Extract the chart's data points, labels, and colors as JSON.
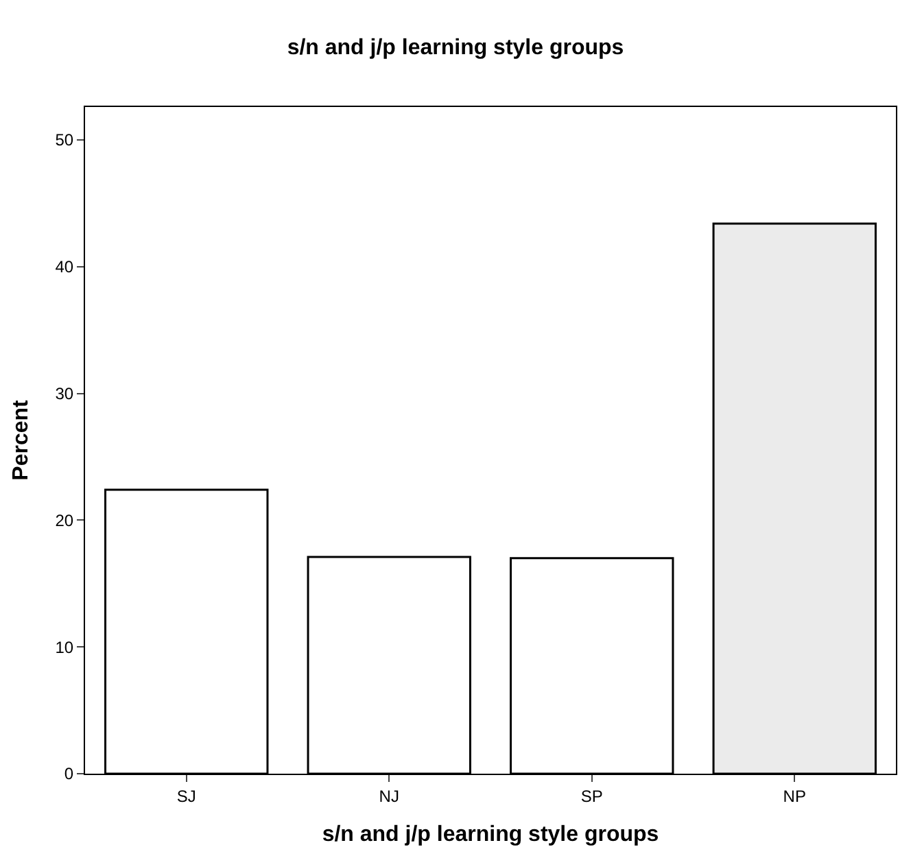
{
  "chart_data": {
    "type": "bar",
    "title": "s/n and j/p learning style groups",
    "xlabel": "s/n and j/p learning style groups",
    "ylabel": "Percent",
    "categories": [
      "SJ",
      "NJ",
      "SP",
      "NP"
    ],
    "values": [
      22.4,
      17.1,
      17.0,
      43.4
    ],
    "colors": [
      "#ffffff",
      "#ffffff",
      "#ffffff",
      "#ebebeb"
    ],
    "ylim": [
      0,
      52.6
    ],
    "yticks": [
      0,
      10,
      20,
      30,
      40,
      50
    ]
  }
}
